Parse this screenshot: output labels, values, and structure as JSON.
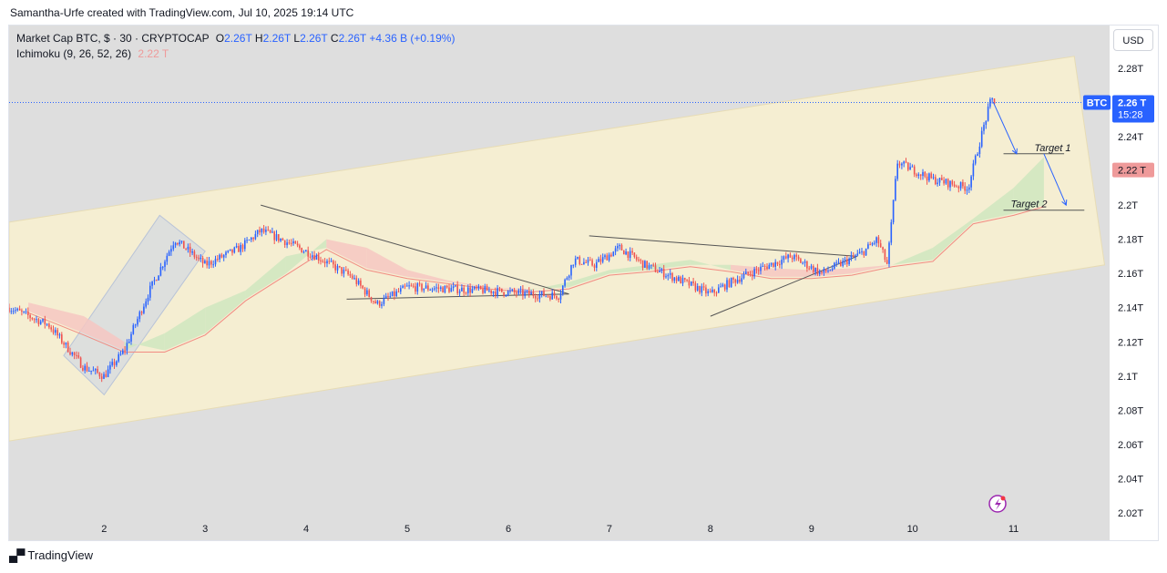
{
  "attribution": "Samantha-Urfe created with TradingView.com, Jul 10, 2025 19:14 UTC",
  "legend": {
    "symbol": "Market Cap BTC, $ · 30 · CRYPTOCAP",
    "o_label": "O",
    "o_value": "2.26T",
    "h_label": "H",
    "h_value": "2.26T",
    "l_label": "L",
    "l_value": "2.26T",
    "c_label": "C",
    "c_value": "2.26T",
    "change": "+4.36 B (+0.19%)",
    "indicator": "Ichimoku (9, 26, 52, 26)",
    "indicator_value": "2.22 T"
  },
  "currency_button": "USD",
  "price_tag": {
    "symbol": "BTC",
    "price": "2.26 T",
    "countdown": "15:28"
  },
  "indicator_tag": "2.22 T",
  "footer_brand": "TradingView",
  "colors": {
    "up": "#2962ff",
    "down": "#ef5350",
    "channel": "#f5eed2",
    "cloud_bull": "#cfe6c0",
    "cloud_bear": "#f6c7c2",
    "kijun": "#f28b82",
    "price_line": "#2962ff",
    "tag_red": "#ef9a9a"
  },
  "chart_data": {
    "type": "candlestick",
    "yticks": [
      "2.28T",
      "2.24T",
      "2.2T",
      "2.18T",
      "2.16T",
      "2.14T",
      "2.12T",
      "2.1T",
      "2.08T",
      "2.06T",
      "2.04T",
      "2.02T"
    ],
    "ytick_values": [
      2.28,
      2.24,
      2.2,
      2.18,
      2.16,
      2.14,
      2.12,
      2.1,
      2.08,
      2.06,
      2.04,
      2.02
    ],
    "ylim": [
      2.004,
      2.305
    ],
    "xticks": [
      "2",
      "3",
      "4",
      "5",
      "6",
      "7",
      "8",
      "9",
      "10",
      "11"
    ],
    "xtick_days": [
      2,
      3,
      4,
      5,
      6,
      7,
      8,
      9,
      10,
      11
    ],
    "xlim": [
      1.06,
      11.95
    ],
    "last_price": 2.26,
    "path_days": [
      1.06,
      1.45,
      1.8,
      2.0,
      2.2,
      2.45,
      2.7,
      3.0,
      3.35,
      3.55,
      3.75,
      4.1,
      4.45,
      4.7,
      5.0,
      5.4,
      5.8,
      6.2,
      6.5,
      6.65,
      6.85,
      7.1,
      7.35,
      7.7,
      8.0,
      8.2,
      8.5,
      8.8,
      9.1,
      9.3,
      9.5,
      9.65,
      9.75,
      9.85,
      10.2,
      10.55,
      10.7,
      10.78,
      10.82
    ],
    "path_prices": [
      2.14,
      2.13,
      2.105,
      2.1,
      2.115,
      2.15,
      2.18,
      2.165,
      2.175,
      2.185,
      2.18,
      2.17,
      2.158,
      2.142,
      2.152,
      2.151,
      2.15,
      2.148,
      2.147,
      2.168,
      2.165,
      2.175,
      2.165,
      2.156,
      2.148,
      2.155,
      2.163,
      2.17,
      2.16,
      2.166,
      2.172,
      2.18,
      2.165,
      2.225,
      2.215,
      2.21,
      2.245,
      2.262,
      2.26
    ],
    "ichimoku_cloud_days": [
      1.25,
      1.8,
      2.2,
      2.6,
      3.0,
      3.4,
      3.8,
      4.2,
      4.6,
      5.0,
      5.4,
      5.8,
      6.2,
      6.6,
      7.0,
      7.4,
      7.8,
      8.2,
      8.6,
      9.0,
      9.4,
      9.8,
      10.2,
      10.6,
      11.0,
      11.3
    ],
    "ichimoku_span_a": [
      2.138,
      2.125,
      2.115,
      2.125,
      2.14,
      2.15,
      2.17,
      2.175,
      2.163,
      2.158,
      2.155,
      2.152,
      2.15,
      2.155,
      2.162,
      2.165,
      2.168,
      2.162,
      2.158,
      2.158,
      2.16,
      2.165,
      2.175,
      2.192,
      2.21,
      2.228
    ],
    "ichimoku_span_b": [
      2.143,
      2.135,
      2.12,
      2.115,
      2.125,
      2.145,
      2.16,
      2.18,
      2.175,
      2.162,
      2.156,
      2.152,
      2.151,
      2.152,
      2.16,
      2.162,
      2.165,
      2.165,
      2.163,
      2.162,
      2.163,
      2.165,
      2.168,
      2.19,
      2.195,
      2.2
    ],
    "channel": {
      "upper": [
        [
          1.06,
          2.19
        ],
        [
          11.6,
          2.287
        ]
      ],
      "lower": [
        [
          1.06,
          2.062
        ],
        [
          11.9,
          2.165
        ]
      ]
    },
    "rising_box": [
      [
        2.55,
        2.194
      ],
      [
        3.0,
        2.173
      ],
      [
        2.0,
        2.089
      ],
      [
        1.6,
        2.112
      ]
    ],
    "triangle_1": {
      "upper": [
        [
          3.55,
          2.2
        ],
        [
          6.6,
          2.148
        ]
      ],
      "lower": [
        [
          4.4,
          2.145
        ],
        [
          6.6,
          2.148
        ]
      ]
    },
    "triangle_2": {
      "upper": [
        [
          6.8,
          2.182
        ],
        [
          9.45,
          2.17
        ]
      ],
      "lower": [
        [
          8.0,
          2.135
        ],
        [
          9.45,
          2.17
        ]
      ]
    },
    "targets": [
      {
        "label": "Target 1",
        "price": 2.23,
        "x_start": 10.9,
        "x_end": 11.5
      },
      {
        "label": "Target 2",
        "price": 2.197,
        "x_start": 10.9,
        "x_end": 11.7
      }
    ],
    "forecast_arrow": [
      [
        10.8,
        2.26
      ],
      [
        11.03,
        2.23
      ],
      [
        11.3,
        2.23
      ],
      [
        11.52,
        2.2
      ]
    ]
  }
}
